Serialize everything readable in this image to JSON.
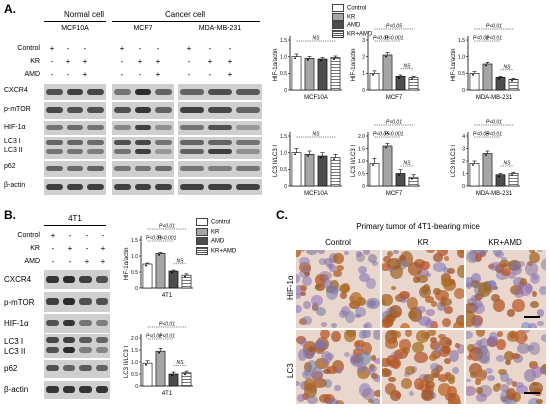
{
  "panel_A": {
    "letter": "A.",
    "header_normal": "Normal cell",
    "header_cancer": "Cancer cell",
    "cell_lines": [
      "MCF10A",
      "MCF7",
      "MDA-MB-231"
    ],
    "treatments": [
      {
        "label": "Control",
        "signs": [
          "+",
          "-",
          "-",
          "+",
          "-",
          "-",
          "+",
          "-",
          "-"
        ]
      },
      {
        "label": "KR",
        "signs": [
          "-",
          "+",
          "+",
          "-",
          "+",
          "+",
          "-",
          "+",
          "+"
        ]
      },
      {
        "label": "AMD",
        "signs": [
          "-",
          "-",
          "+",
          "-",
          "-",
          "+",
          "-",
          "-",
          "+"
        ]
      }
    ],
    "proteins": [
      "CXCR4",
      "p-mTOR",
      "HIF-1α",
      "LC3 I",
      "LC3 II",
      "p62",
      "β-actin"
    ],
    "legend": [
      "Control",
      "KR",
      "AMD",
      "KR+AMD"
    ]
  },
  "panel_B": {
    "letter": "B.",
    "cell_line": "4T1",
    "treatments": [
      {
        "label": "Control",
        "signs": [
          "+",
          "-",
          "-",
          "-"
        ]
      },
      {
        "label": "KR",
        "signs": [
          "-",
          "+",
          "-",
          "+"
        ]
      },
      {
        "label": "AMD",
        "signs": [
          "-",
          "-",
          "+",
          "+"
        ]
      }
    ],
    "proteins": [
      "CXCR4",
      "p-mTOR",
      "HIF-1α",
      "LC3 I",
      "LC3 II",
      "p62",
      "β-actin"
    ],
    "legend": [
      "Control",
      "KR",
      "AMD",
      "KR+AMD"
    ]
  },
  "panel_C": {
    "letter": "C.",
    "title": "Primary tumor of 4T1-bearing mice",
    "columns": [
      "Control",
      "KR",
      "KR+AMD"
    ],
    "rows": [
      "HIF-1α",
      "LC3"
    ]
  },
  "colors": {
    "control": "#ffffff",
    "kr": "#a6a6a6",
    "amd": "#4d4d4d",
    "kramd": "#e6e6e6"
  },
  "chart_data": [
    {
      "id": "a-hif-mcf10a",
      "type": "bar",
      "xlabel": "MCF10A",
      "ylabel": "HIF-1α/actin",
      "ylim": [
        0,
        1.5
      ],
      "yticks": [
        "0",
        "0.5",
        "1.0",
        "1.5"
      ],
      "values": [
        1.0,
        0.95,
        0.93,
        0.97
      ],
      "errors": [
        0.08,
        0.05,
        0.04,
        0.05
      ],
      "annotations": [
        {
          "text": "NS",
          "from": 0,
          "to": 3,
          "level": 0
        }
      ]
    },
    {
      "id": "a-hif-mcf7",
      "type": "bar",
      "xlabel": "MCF7",
      "ylabel": "HIF-1α/actin",
      "ylim": [
        0,
        3
      ],
      "yticks": [
        "0",
        "1",
        "2",
        "3"
      ],
      "values": [
        1.0,
        2.1,
        0.82,
        0.75
      ],
      "errors": [
        0.15,
        0.15,
        0.08,
        0.07
      ],
      "annotations": [
        {
          "text": "P<0.05",
          "from": 0,
          "to": 3,
          "level": 2
        },
        {
          "text": "P<0.01",
          "from": 0,
          "to": 1,
          "level": 1
        },
        {
          "text": "P<0.001",
          "from": 1,
          "to": 2,
          "level": 1
        },
        {
          "text": "NS",
          "from": 2,
          "to": 3,
          "level": 0
        }
      ]
    },
    {
      "id": "a-hif-mda",
      "type": "bar",
      "xlabel": "MDA-MB-231",
      "ylabel": "HIF-1α/actin",
      "ylim": [
        0,
        1.5
      ],
      "yticks": [
        "0",
        "0.5",
        "1.0",
        "1.5"
      ],
      "values": [
        0.5,
        0.78,
        0.38,
        0.32
      ],
      "errors": [
        0.05,
        0.05,
        0.03,
        0.03
      ],
      "annotations": [
        {
          "text": "P<0.01",
          "from": 0,
          "to": 3,
          "level": 2
        },
        {
          "text": "P<0.01",
          "from": 0,
          "to": 1,
          "level": 1
        },
        {
          "text": "P<0.01",
          "from": 1,
          "to": 2,
          "level": 1
        },
        {
          "text": "NS",
          "from": 2,
          "to": 3,
          "level": 0
        }
      ]
    },
    {
      "id": "a-lc3-mcf10a",
      "type": "bar",
      "xlabel": "MCF10A",
      "ylabel": "LC3 II/LC3 I",
      "ylim": [
        0,
        1.5
      ],
      "yticks": [
        "0",
        "0.5",
        "1.0",
        "1.5"
      ],
      "values": [
        1.0,
        0.95,
        0.9,
        0.85
      ],
      "errors": [
        0.12,
        0.1,
        0.1,
        0.1
      ],
      "annotations": [
        {
          "text": "NS",
          "from": 0,
          "to": 3,
          "level": 0
        }
      ]
    },
    {
      "id": "a-lc3-mcf7",
      "type": "bar",
      "xlabel": "MCF7",
      "ylabel": "LC3 II/LC3 I",
      "ylim": [
        0,
        2
      ],
      "yticks": [
        "0",
        "0.5",
        "1.0",
        "1.5",
        "2.0"
      ],
      "values": [
        0.9,
        1.6,
        0.5,
        0.35
      ],
      "errors": [
        0.2,
        0.1,
        0.15,
        0.1
      ],
      "annotations": [
        {
          "text": "P<0.01",
          "from": 0,
          "to": 3,
          "level": 2
        },
        {
          "text": "P<0.05",
          "from": 0,
          "to": 1,
          "level": 1
        },
        {
          "text": "P<0.001",
          "from": 1,
          "to": 2,
          "level": 1
        },
        {
          "text": "NS",
          "from": 2,
          "to": 3,
          "level": 0
        }
      ]
    },
    {
      "id": "a-lc3-mda",
      "type": "bar",
      "xlabel": "MDA-MB-231",
      "ylabel": "LC3 II/LC3 I",
      "ylim": [
        0,
        4
      ],
      "yticks": [
        "0",
        "1",
        "2",
        "3",
        "4"
      ],
      "values": [
        1.8,
        2.6,
        0.9,
        1.0
      ],
      "errors": [
        0.2,
        0.2,
        0.1,
        0.1
      ],
      "annotations": [
        {
          "text": "P<0.01",
          "from": 0,
          "to": 3,
          "level": 2
        },
        {
          "text": "P<0.05",
          "from": 0,
          "to": 1,
          "level": 1
        },
        {
          "text": "P<0.01",
          "from": 1,
          "to": 2,
          "level": 1
        },
        {
          "text": "NS",
          "from": 2,
          "to": 3,
          "level": 0
        }
      ]
    },
    {
      "id": "b-hif-4t1",
      "type": "bar",
      "xlabel": "4T1",
      "ylabel": "HIF-1α/actin",
      "ylim": [
        0,
        1.5
      ],
      "yticks": [
        "0",
        "0.5",
        "1.0",
        "1.5"
      ],
      "values": [
        0.75,
        1.08,
        0.53,
        0.4
      ],
      "errors": [
        0.03,
        0.03,
        0.03,
        0.04
      ],
      "annotations": [
        {
          "text": "P<0.01",
          "from": 0,
          "to": 3,
          "level": 2
        },
        {
          "text": "P<0.01",
          "from": 0,
          "to": 1,
          "level": 1
        },
        {
          "text": "P<0.001",
          "from": 1,
          "to": 2,
          "level": 1
        },
        {
          "text": "NS",
          "from": 2,
          "to": 3,
          "level": 0
        }
      ]
    },
    {
      "id": "b-lc3-4t1",
      "type": "bar",
      "xlabel": "4T1",
      "ylabel": "LC3 II/LC3 I",
      "ylim": [
        0,
        2
      ],
      "yticks": [
        "0",
        "0.5",
        "1.0",
        "1.5",
        "2.0"
      ],
      "values": [
        0.95,
        1.45,
        0.5,
        0.55
      ],
      "errors": [
        0.1,
        0.12,
        0.08,
        0.07
      ],
      "annotations": [
        {
          "text": "P<0.01",
          "from": 0,
          "to": 3,
          "level": 2
        },
        {
          "text": "P<0.01",
          "from": 0,
          "to": 1,
          "level": 1
        },
        {
          "text": "P<0.01",
          "from": 1,
          "to": 2,
          "level": 1
        },
        {
          "text": "NS",
          "from": 2,
          "to": 3,
          "level": 0
        }
      ]
    }
  ]
}
